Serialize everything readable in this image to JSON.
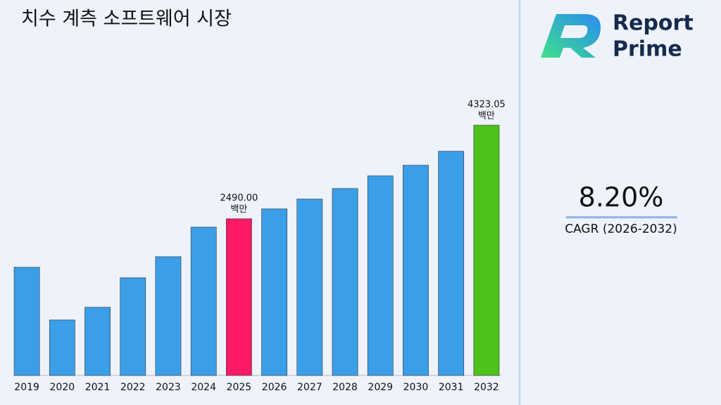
{
  "chart_data": {
    "type": "bar",
    "title": "치수 계측 소프트웨어 시장",
    "categories": [
      "2019",
      "2020",
      "2021",
      "2022",
      "2023",
      "2024",
      "2025",
      "2026",
      "2027",
      "2028",
      "2029",
      "2030",
      "2031",
      "2032"
    ],
    "values": [
      1539,
      506,
      754,
      1333,
      1746,
      2325,
      2490,
      2683,
      2876,
      3083,
      3331,
      3538,
      3813,
      4323.05
    ],
    "value_labels": [
      null,
      null,
      null,
      null,
      null,
      null,
      "2490.00",
      null,
      null,
      null,
      null,
      null,
      null,
      "4323.05"
    ],
    "value_unit": "백만",
    "colors": [
      "#3a9fe8",
      "#3a9fe8",
      "#3a9fe8",
      "#3a9fe8",
      "#3a9fe8",
      "#3a9fe8",
      "#ff1a66",
      "#3a9fe8",
      "#3a9fe8",
      "#3a9fe8",
      "#3a9fe8",
      "#3a9fe8",
      "#3a9fe8",
      "#4cc21a"
    ],
    "ylim": [
      -583,
      4847
    ]
  },
  "side_panel": {
    "brand": [
      "Report",
      "Prime"
    ],
    "cagr_value": "8.20%",
    "cagr_label": "CAGR (2026-2032)"
  }
}
